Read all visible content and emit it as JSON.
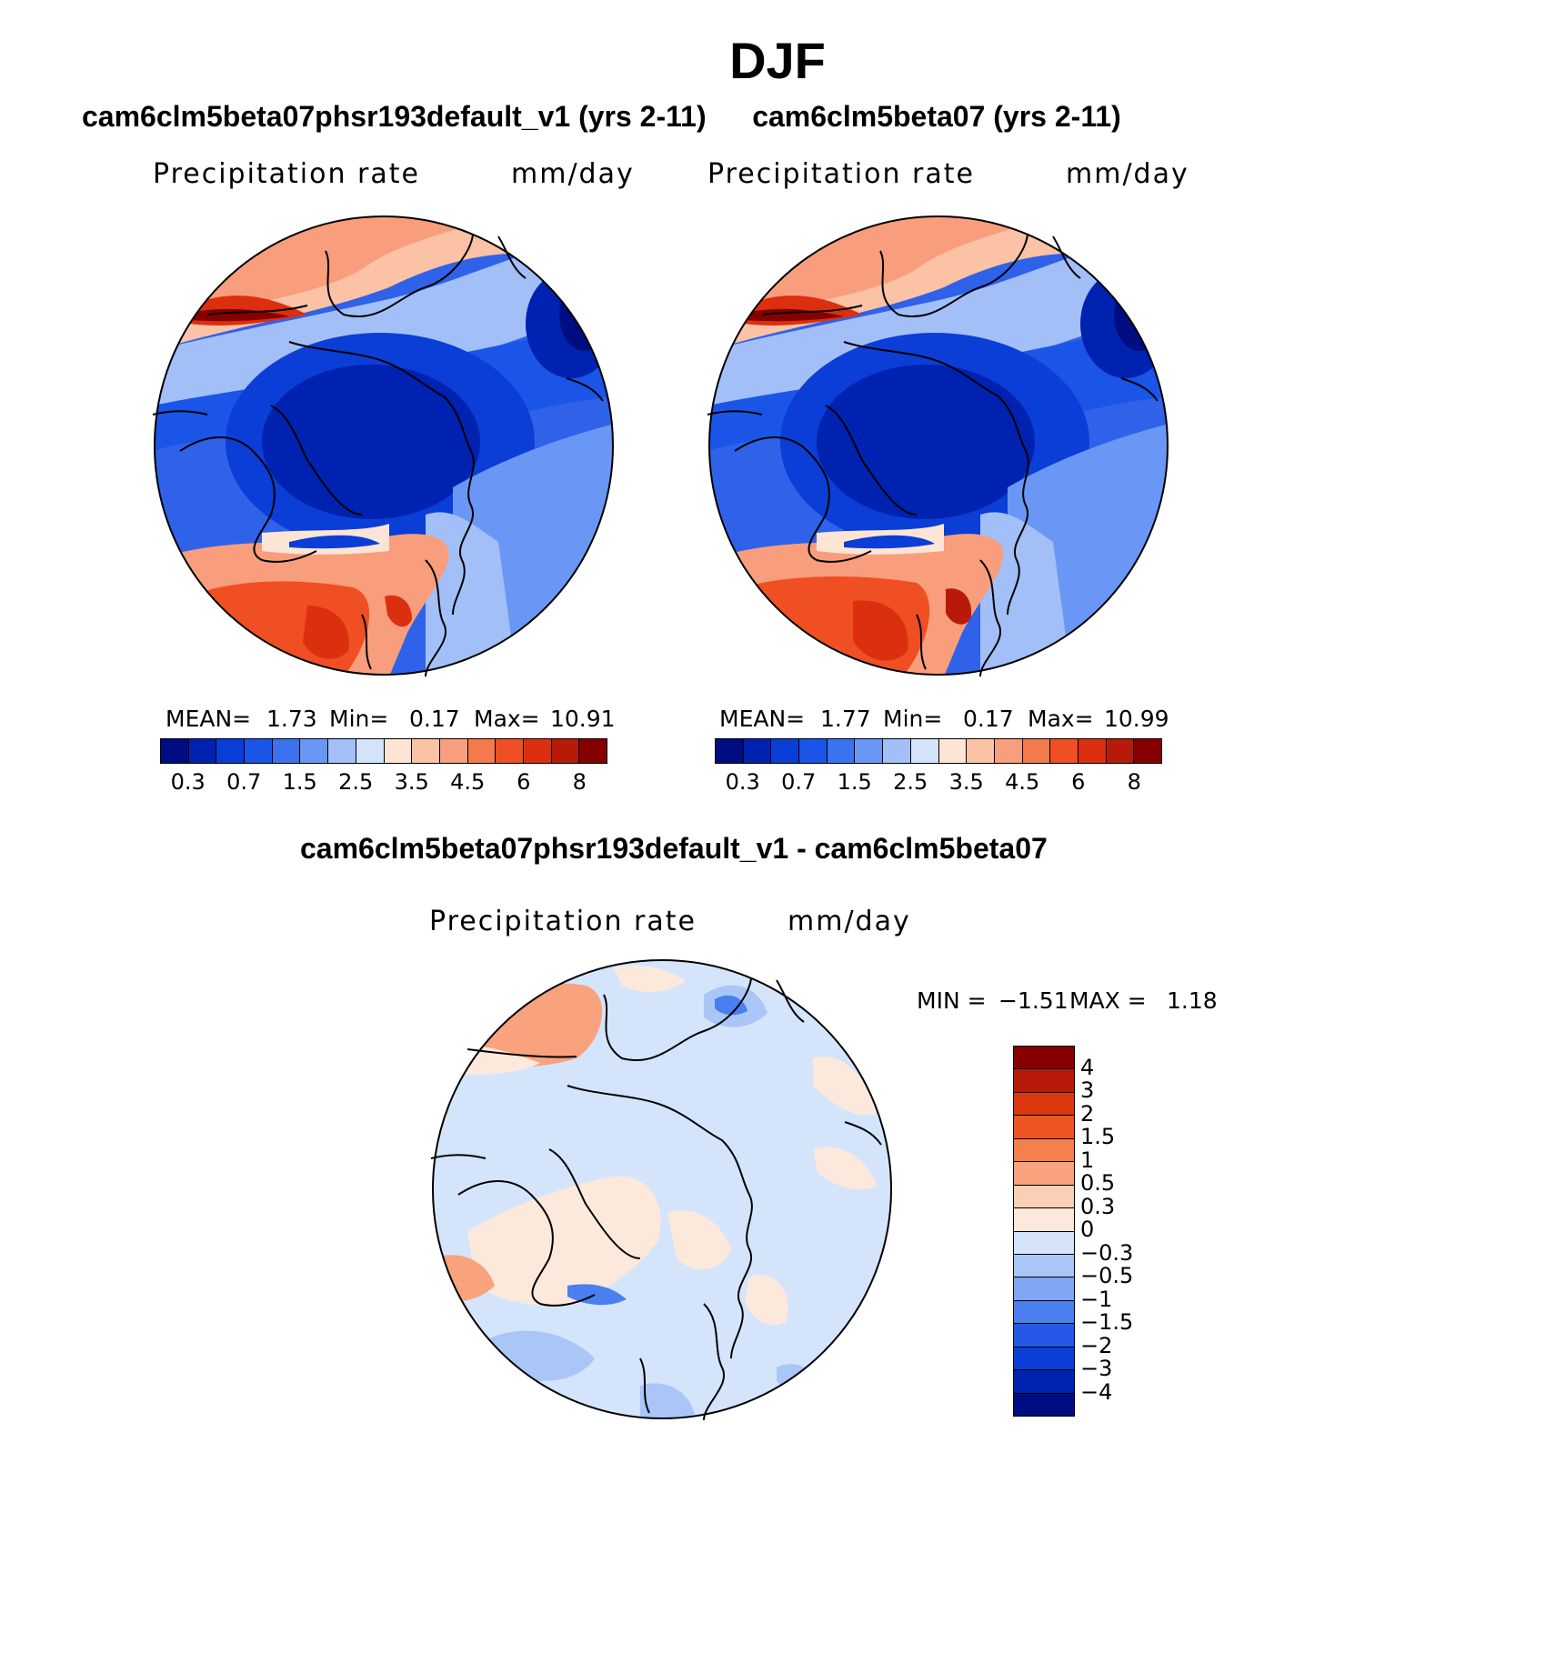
{
  "title": "DJF",
  "panels": [
    {
      "title": "cam6clm5beta07phsr193default_v1 (yrs 2-11)",
      "variable": "Precipitation rate",
      "units": "mm/day",
      "stats": {
        "mean_label": "MEAN=",
        "mean": "1.73",
        "min_label": "Min=",
        "min": "0.17",
        "max_label": "Max=",
        "max": "10.91"
      }
    },
    {
      "title": "cam6clm5beta07 (yrs 2-11)",
      "variable": "Precipitation rate",
      "units": "mm/day",
      "stats": {
        "mean_label": "MEAN=",
        "mean": "1.77",
        "min_label": "Min=",
        "min": "0.17",
        "max_label": "Max=",
        "max": "10.99"
      }
    }
  ],
  "diff_panel": {
    "title": "cam6clm5beta07phsr193default_v1 - cam6clm5beta07",
    "variable": "Precipitation rate",
    "units": "mm/day",
    "min_label": "MIN =",
    "min": "−1.51",
    "max_label": "MAX =",
    "max": "1.18"
  },
  "colorbar_abs": {
    "colors": [
      "#000d82",
      "#0022b0",
      "#0a3ed6",
      "#1a55e8",
      "#3a72f0",
      "#6a97f5",
      "#a3bff7",
      "#d3e3fa",
      "#fce5d4",
      "#fbc2a5",
      "#f89e7c",
      "#f47a4e",
      "#ef4f22",
      "#dc2f10",
      "#b81a0a",
      "#860000"
    ],
    "ticks": [
      "0.3",
      "0.7",
      "1.5",
      "2.5",
      "3.5",
      "4.5",
      "6",
      "8"
    ]
  },
  "colorbar_diff": {
    "colors_top_to_bottom": [
      "#860000",
      "#b81a0a",
      "#dc3810",
      "#ef5522",
      "#f4804e",
      "#f8a37e",
      "#fbcfb4",
      "#fce9dc",
      "#d4e5fb",
      "#a9c6f7",
      "#7ea6f3",
      "#4a7ff0",
      "#2558e6",
      "#0a3ed6",
      "#0022b0",
      "#000d82"
    ],
    "ticks": [
      "4",
      "3",
      "2",
      "1.5",
      "1",
      "0.5",
      "0.3",
      "0",
      "−0.3",
      "−0.5",
      "−1",
      "−1.5",
      "−2",
      "−3",
      "−4"
    ]
  },
  "palette": {
    "land_outline": "#000000",
    "background": "#ffffff"
  }
}
